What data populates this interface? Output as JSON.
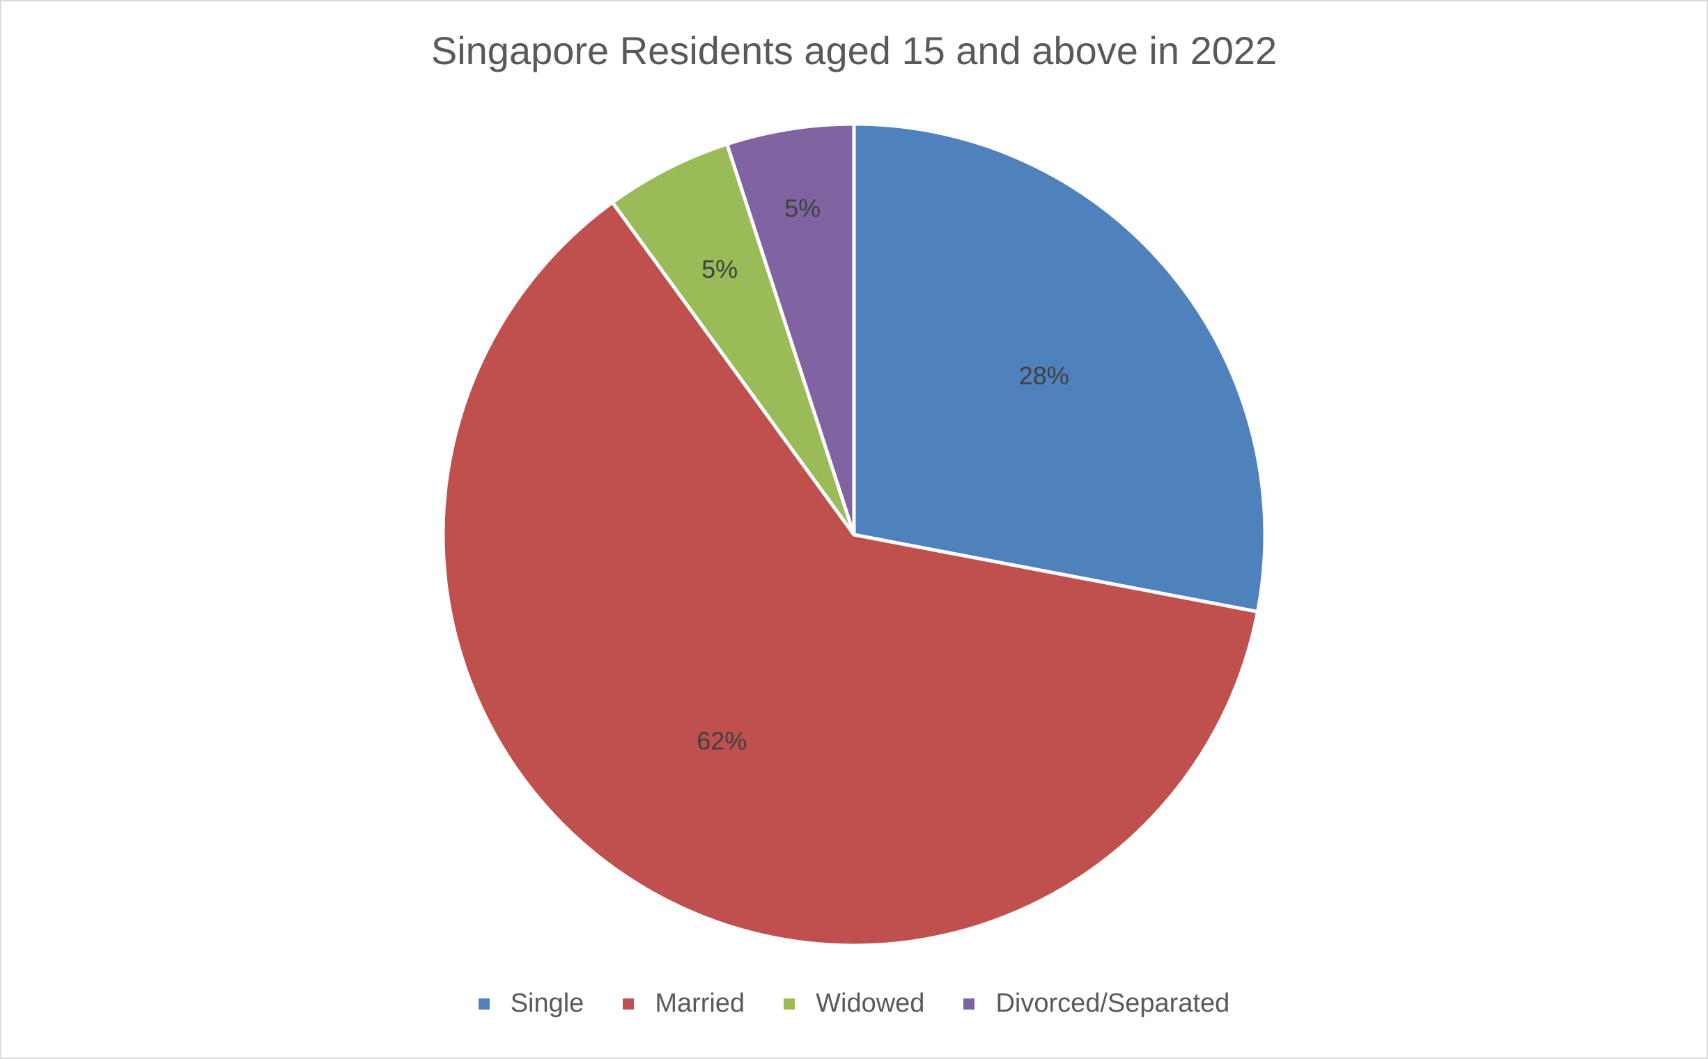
{
  "chart_data": {
    "type": "pie",
    "title": "Singapore Residents aged 15 and above in 2022",
    "categories": [
      "Single",
      "Married",
      "Widowed",
      "Divorced/Separated"
    ],
    "values": [
      28,
      62,
      5,
      5
    ],
    "labels": [
      "28%",
      "62%",
      "5%",
      "5%"
    ],
    "colors": [
      "#4f81bd",
      "#c0504d",
      "#9bbb59",
      "#8064a2"
    ],
    "legend_position": "bottom"
  }
}
